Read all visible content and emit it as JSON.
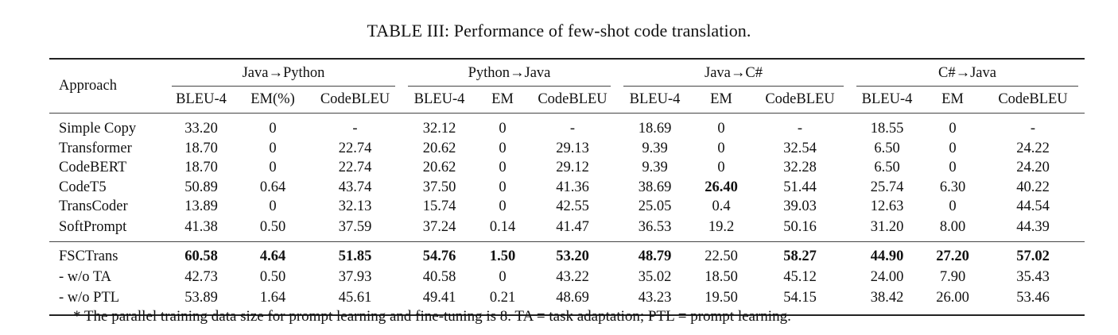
{
  "caption": "TABLE III: Performance of few-shot code translation.",
  "header": {
    "approach": "Approach",
    "groups": [
      "Java→Python",
      "Python→Java",
      "Java→C#",
      "C#→Java"
    ],
    "metrics": [
      "BLEU-4",
      "EM(%)",
      "CodeBLEU",
      "BLEU-4",
      "EM",
      "CodeBLEU",
      "BLEU-4",
      "EM",
      "CodeBLEU",
      "BLEU-4",
      "EM",
      "CodeBLEU"
    ]
  },
  "rows": [
    {
      "name": "Simple Copy",
      "cells": [
        "33.20",
        "0",
        "-",
        "32.12",
        "0",
        "-",
        "18.69",
        "0",
        "-",
        "18.55",
        "0",
        "-"
      ],
      "bold": []
    },
    {
      "name": "Transformer",
      "cells": [
        "18.70",
        "0",
        "22.74",
        "20.62",
        "0",
        "29.13",
        "9.39",
        "0",
        "32.54",
        "6.50",
        "0",
        "24.22"
      ],
      "bold": []
    },
    {
      "name": "CodeBERT",
      "cells": [
        "18.70",
        "0",
        "22.74",
        "20.62",
        "0",
        "29.12",
        "9.39",
        "0",
        "32.28",
        "6.50",
        "0",
        "24.20"
      ],
      "bold": []
    },
    {
      "name": "CodeT5",
      "cells": [
        "50.89",
        "0.64",
        "43.74",
        "37.50",
        "0",
        "41.36",
        "38.69",
        "26.40",
        "51.44",
        "25.74",
        "6.30",
        "40.22"
      ],
      "bold": [
        7
      ]
    },
    {
      "name": "TransCoder",
      "cells": [
        "13.89",
        "0",
        "32.13",
        "15.74",
        "0",
        "42.55",
        "25.05",
        "0.4",
        "39.03",
        "12.63",
        "0",
        "44.54"
      ],
      "bold": []
    },
    {
      "name": "SoftPrompt",
      "cells": [
        "41.38",
        "0.50",
        "37.59",
        "37.24",
        "0.14",
        "41.47",
        "36.53",
        "19.2",
        "50.16",
        "31.20",
        "8.00",
        "44.39"
      ],
      "bold": []
    },
    {
      "name": "FSCTrans",
      "cells": [
        "60.58",
        "4.64",
        "51.85",
        "54.76",
        "1.50",
        "53.20",
        "48.79",
        "22.50",
        "58.27",
        "44.90",
        "27.20",
        "57.02"
      ],
      "bold": [
        0,
        1,
        2,
        3,
        4,
        5,
        6,
        8,
        9,
        10,
        11
      ]
    },
    {
      "name": "- w/o TA",
      "cells": [
        "42.73",
        "0.50",
        "37.93",
        "40.58",
        "0",
        "43.22",
        "35.02",
        "18.50",
        "45.12",
        "24.00",
        "7.90",
        "35.43"
      ],
      "bold": []
    },
    {
      "name": "- w/o PTL",
      "cells": [
        "53.89",
        "1.64",
        "45.61",
        "49.41",
        "0.21",
        "48.69",
        "43.23",
        "19.50",
        "54.15",
        "38.42",
        "26.00",
        "53.46"
      ],
      "bold": []
    }
  ],
  "footnote": "* The parallel training data size for prompt learning and fine-tuning is 8. TA = task adaptation; PTL = prompt learning."
}
